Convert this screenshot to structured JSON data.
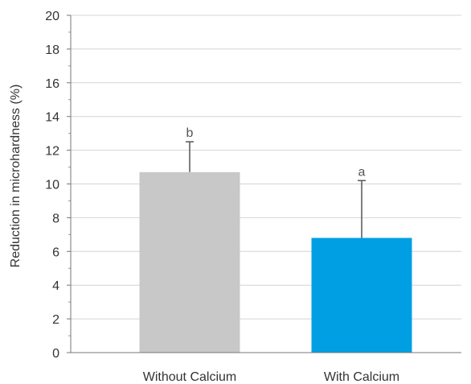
{
  "chart_data": {
    "type": "bar",
    "categories": [
      "Without Calcium",
      "With Calcium"
    ],
    "values": [
      10.7,
      6.8
    ],
    "errors": [
      1.8,
      3.4
    ],
    "significance_labels": [
      "b",
      "a"
    ],
    "colors": [
      "#c8c8c8",
      "#009fe3"
    ],
    "title": "",
    "xlabel": "",
    "ylabel": "Reduction in microhardness (%)",
    "ylim": [
      0,
      20
    ],
    "yticks": [
      0,
      2,
      4,
      6,
      8,
      10,
      12,
      14,
      16,
      18,
      20
    ],
    "grid": true,
    "legend": "none"
  }
}
